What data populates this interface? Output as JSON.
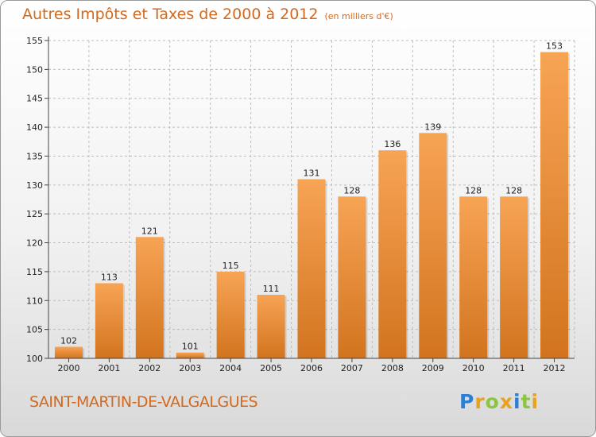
{
  "header": {
    "title": "Autres Impôts et Taxes de 2000 à 2012",
    "unit": "(en milliers d'€)"
  },
  "footer": {
    "place": "SAINT-MARTIN-DE-VALGALGUES"
  },
  "brand": {
    "name": "Proxiti",
    "letters": [
      {
        "char": "P",
        "color": "#2e7fd1"
      },
      {
        "char": "r",
        "color": "#e8a21c"
      },
      {
        "char": "o",
        "color": "#8cc63f"
      },
      {
        "char": "x",
        "color": "#e8a21c"
      },
      {
        "char": "i",
        "color": "#2e7fd1"
      },
      {
        "char": "t",
        "color": "#8cc63f"
      },
      {
        "char": "i",
        "color": "#e8a21c"
      }
    ]
  },
  "colors": {
    "bar_top": "#f7a455",
    "bar_bottom": "#d2741e",
    "title": "#d2691e",
    "grid": "#bdbdbd"
  },
  "chart_data": {
    "type": "bar",
    "title": "Autres Impôts et Taxes de 2000 à 2012",
    "subtitle": "(en milliers d'€)",
    "xlabel": "",
    "ylabel": "",
    "categories": [
      "2000",
      "2001",
      "2002",
      "2003",
      "2004",
      "2005",
      "2006",
      "2007",
      "2008",
      "2009",
      "2010",
      "2011",
      "2012"
    ],
    "values": [
      102,
      113,
      121,
      101,
      115,
      111,
      131,
      128,
      136,
      139,
      128,
      128,
      153
    ],
    "ylim": [
      100,
      155
    ],
    "yticks": [
      100,
      105,
      110,
      115,
      120,
      125,
      130,
      135,
      140,
      145,
      150,
      155
    ],
    "grid": true,
    "data_labels": true
  }
}
